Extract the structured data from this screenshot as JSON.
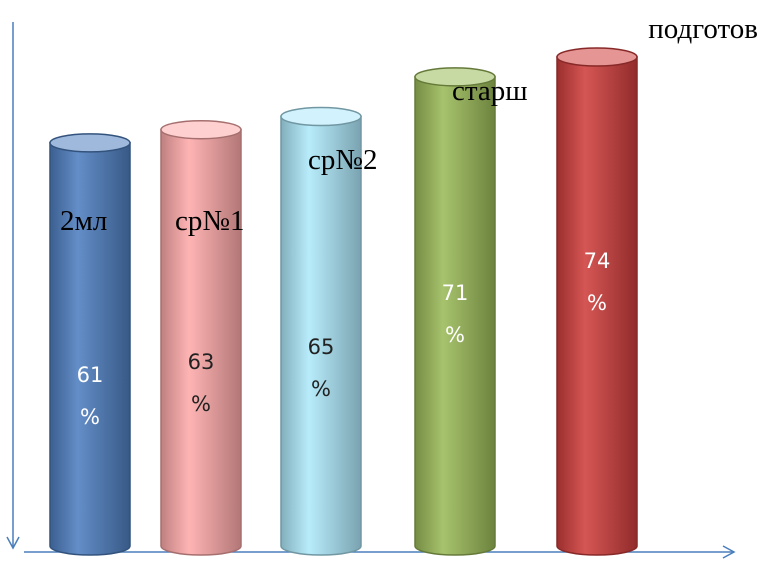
{
  "chart_data": {
    "type": "bar",
    "title": "",
    "xlabel": "",
    "ylabel": "",
    "categories": [
      "2мл",
      "ср№1",
      "ср№2",
      "старш",
      "подготов"
    ],
    "values": [
      61,
      63,
      65,
      71,
      74
    ],
    "value_labels": [
      [
        "61",
        "%"
      ],
      [
        "63",
        "%"
      ],
      [
        "65",
        "%"
      ],
      [
        "71",
        "%"
      ],
      [
        "74",
        "%"
      ]
    ],
    "unit": "%",
    "bar_style": "cylinder",
    "colors": [
      "#4f7fc0",
      "#ffaaaa",
      "#aee9fb",
      "#9bbb59",
      "#cf3f3d"
    ],
    "grid": false,
    "legend": "none"
  }
}
